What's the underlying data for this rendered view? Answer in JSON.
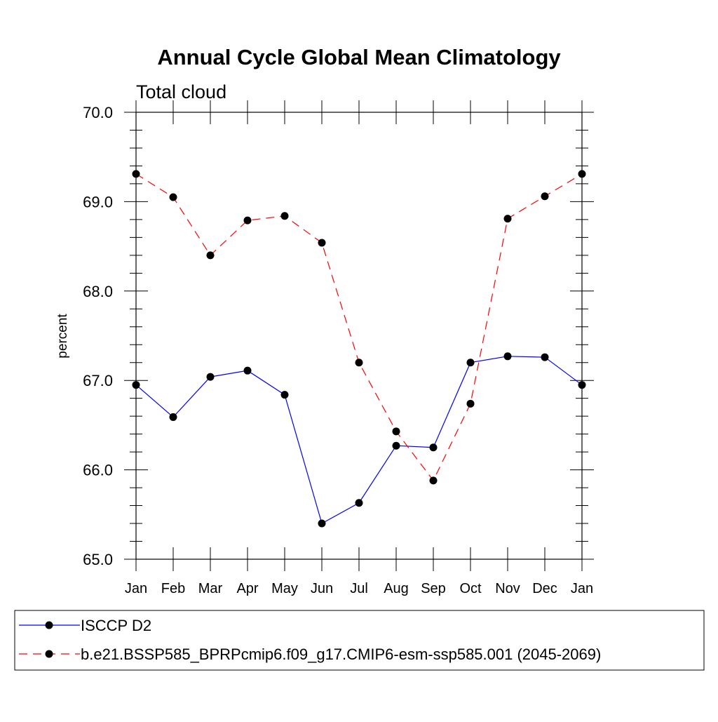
{
  "chart_data": {
    "type": "line",
    "title": "Annual Cycle Global Mean Climatology",
    "subtitle": "Total cloud",
    "xlabel": "",
    "ylabel": "percent",
    "categories": [
      "Jan",
      "Feb",
      "Mar",
      "Apr",
      "May",
      "Jun",
      "Jul",
      "Aug",
      "Sep",
      "Oct",
      "Nov",
      "Dec",
      "Jan"
    ],
    "ylim": [
      65.0,
      70.0
    ],
    "yticks": [
      "65.0",
      "66.0",
      "67.0",
      "68.0",
      "69.0",
      "70.0"
    ],
    "grid": false,
    "legend_position": "bottom",
    "series": [
      {
        "name": "ISCCP D2",
        "color": "#0000ff",
        "line_style": "solid",
        "marker": "filled-circle",
        "values": [
          66.95,
          66.59,
          67.04,
          67.11,
          66.84,
          65.4,
          65.63,
          66.27,
          66.25,
          67.2,
          67.27,
          67.26,
          66.95
        ]
      },
      {
        "name": "b.e21.BSSP585_BPRPcmip6.f09_g17.CMIP6-esm-ssp585.001 (2045-2069)",
        "color": "#ff0000",
        "line_style": "dashed",
        "marker": "filled-circle",
        "values": [
          69.31,
          69.05,
          68.4,
          68.79,
          68.84,
          68.54,
          67.2,
          66.43,
          65.88,
          66.74,
          68.81,
          69.06,
          69.31
        ]
      }
    ]
  }
}
